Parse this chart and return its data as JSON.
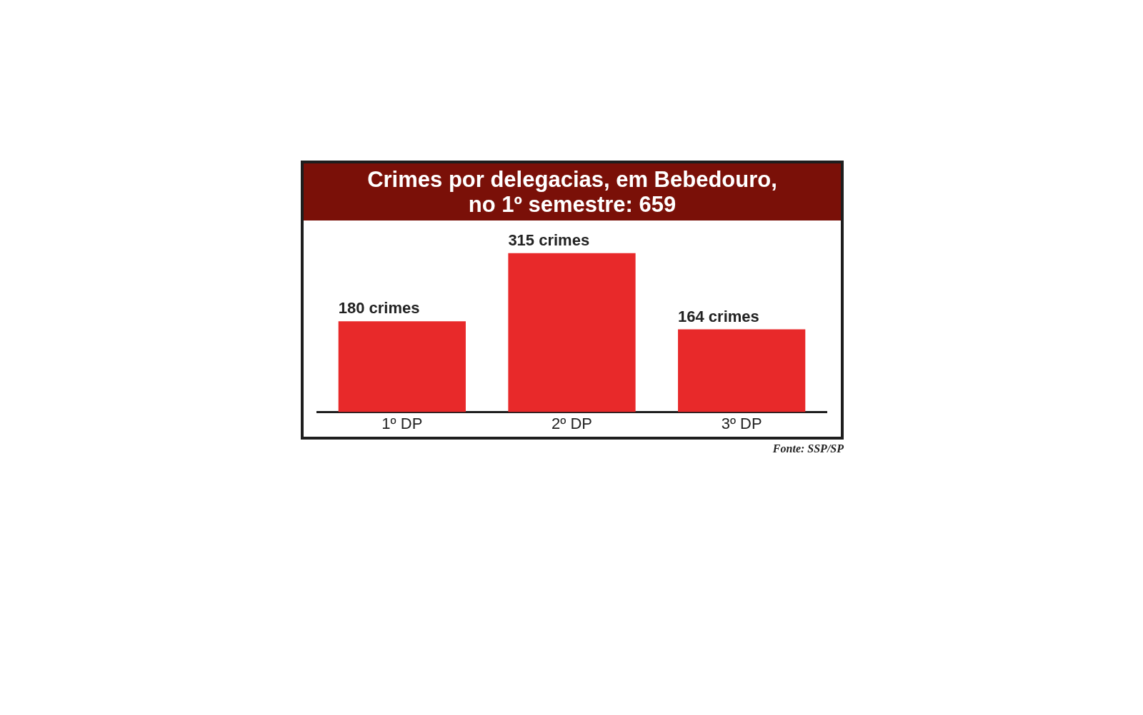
{
  "chart_data": {
    "type": "bar",
    "title": "Crimes por delegacias, em Bebedouro,\nno 1º semestre: 659",
    "categories": [
      "1º DP",
      "2º DP",
      "3º DP"
    ],
    "values": [
      180,
      315,
      164
    ],
    "value_labels": [
      "180 crimes",
      "315 crimes",
      "164 crimes"
    ],
    "color": "#e8292a",
    "tick_labels": "x",
    "annotations": [
      "Fonte: SSP/SP"
    ]
  }
}
